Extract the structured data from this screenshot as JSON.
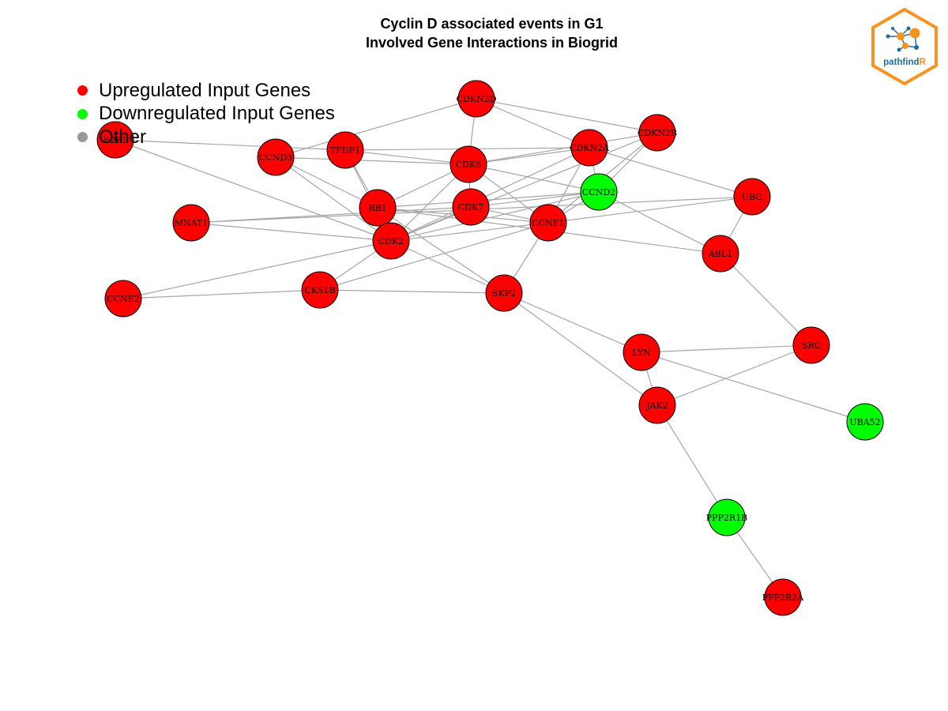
{
  "title": {
    "line1": "Cyclin D associated events in G1",
    "line2": "Involved Gene Interactions in Biogrid"
  },
  "legend": {
    "items": [
      {
        "label": "Upregulated Input Genes",
        "color": "#ff0000"
      },
      {
        "label": "Downregulated Input Genes",
        "color": "#00ff00"
      },
      {
        "label": "Other",
        "color": "#999999"
      }
    ]
  },
  "logo": {
    "text_main": "pathfind",
    "text_accent": "R"
  },
  "colors": {
    "up": "#ff0000",
    "down": "#00ff00",
    "edge": "#a6a6a6",
    "logo_orange": "#f7931e",
    "logo_blue": "#1f6f9f"
  },
  "network": {
    "nodes": [
      {
        "id": "CDKN2D",
        "status": "up"
      },
      {
        "id": "CDKN2B",
        "status": "up"
      },
      {
        "id": "CDKN2A",
        "status": "up"
      },
      {
        "id": "E2F1",
        "status": "up"
      },
      {
        "id": "CCND3",
        "status": "up"
      },
      {
        "id": "TFDP1",
        "status": "up"
      },
      {
        "id": "CDK6",
        "status": "up"
      },
      {
        "id": "CCND2",
        "status": "down"
      },
      {
        "id": "UBC",
        "status": "up"
      },
      {
        "id": "MNAT1",
        "status": "up"
      },
      {
        "id": "RB1",
        "status": "up"
      },
      {
        "id": "CDK7",
        "status": "up"
      },
      {
        "id": "CCNE1",
        "status": "up"
      },
      {
        "id": "CDK2",
        "status": "up"
      },
      {
        "id": "ABL1",
        "status": "up"
      },
      {
        "id": "CCNE2",
        "status": "up"
      },
      {
        "id": "CKS1B",
        "status": "up"
      },
      {
        "id": "SKP2",
        "status": "up"
      },
      {
        "id": "LYN",
        "status": "up"
      },
      {
        "id": "SRC",
        "status": "up"
      },
      {
        "id": "JAK2",
        "status": "up"
      },
      {
        "id": "UBA52",
        "status": "down"
      },
      {
        "id": "PPP2R1B",
        "status": "down"
      },
      {
        "id": "PPP2R2A",
        "status": "up"
      }
    ],
    "edges": [
      [
        "CDKN2D",
        "CCND3"
      ],
      [
        "CDKN2D",
        "CDK6"
      ],
      [
        "CDKN2D",
        "CDKN2A"
      ],
      [
        "CDKN2D",
        "CDKN2B"
      ],
      [
        "E2F1",
        "TFDP1"
      ],
      [
        "E2F1",
        "CDK2"
      ],
      [
        "CCND3",
        "CDK6"
      ],
      [
        "CCND3",
        "CDK2"
      ],
      [
        "CCND3",
        "RB1"
      ],
      [
        "TFDP1",
        "CDKN2A"
      ],
      [
        "TFDP1",
        "CDK6"
      ],
      [
        "TFDP1",
        "RB1"
      ],
      [
        "TFDP1",
        "CDK2"
      ],
      [
        "CDK6",
        "CDKN2B"
      ],
      [
        "CDK6",
        "CDKN2A"
      ],
      [
        "CDK6",
        "CCND2"
      ],
      [
        "CDK6",
        "RB1"
      ],
      [
        "CDK6",
        "CDK2"
      ],
      [
        "CDK6",
        "CDK7"
      ],
      [
        "CDK6",
        "CCNE1"
      ],
      [
        "CDKN2A",
        "CCND2"
      ],
      [
        "CDKN2A",
        "UBC"
      ],
      [
        "CDKN2A",
        "CCNE1"
      ],
      [
        "CDKN2A",
        "CDK2"
      ],
      [
        "CDKN2B",
        "CCND2"
      ],
      [
        "CDKN2B",
        "CCNE1"
      ],
      [
        "CDKN2B",
        "CDK2"
      ],
      [
        "CCND2",
        "CDK2"
      ],
      [
        "CCND2",
        "RB1"
      ],
      [
        "CCND2",
        "ABL1"
      ],
      [
        "CCND2",
        "CCNE1"
      ],
      [
        "CCND2",
        "CDK7"
      ],
      [
        "UBC",
        "ABL1"
      ],
      [
        "UBC",
        "MNAT1"
      ],
      [
        "UBC",
        "CCNE1"
      ],
      [
        "MNAT1",
        "CDK7"
      ],
      [
        "MNAT1",
        "CDK2"
      ],
      [
        "RB1",
        "CDK2"
      ],
      [
        "RB1",
        "CCNE1"
      ],
      [
        "RB1",
        "SKP2"
      ],
      [
        "RB1",
        "ABL1"
      ],
      [
        "CDK7",
        "CDK2"
      ],
      [
        "CDK7",
        "CCNE1"
      ],
      [
        "CCNE1",
        "CDK2"
      ],
      [
        "CCNE1",
        "SKP2"
      ],
      [
        "CCNE1",
        "CKS1B"
      ],
      [
        "CDK2",
        "CCNE2"
      ],
      [
        "CDK2",
        "CKS1B"
      ],
      [
        "CDK2",
        "SKP2"
      ],
      [
        "CCNE2",
        "CKS1B"
      ],
      [
        "CKS1B",
        "SKP2"
      ],
      [
        "SKP2",
        "LYN"
      ],
      [
        "SKP2",
        "JAK2"
      ],
      [
        "ABL1",
        "SRC"
      ],
      [
        "LYN",
        "SRC"
      ],
      [
        "LYN",
        "JAK2"
      ],
      [
        "LYN",
        "UBA52"
      ],
      [
        "SRC",
        "JAK2"
      ],
      [
        "JAK2",
        "PPP2R1B"
      ],
      [
        "PPP2R1B",
        "PPP2R2A"
      ]
    ]
  }
}
